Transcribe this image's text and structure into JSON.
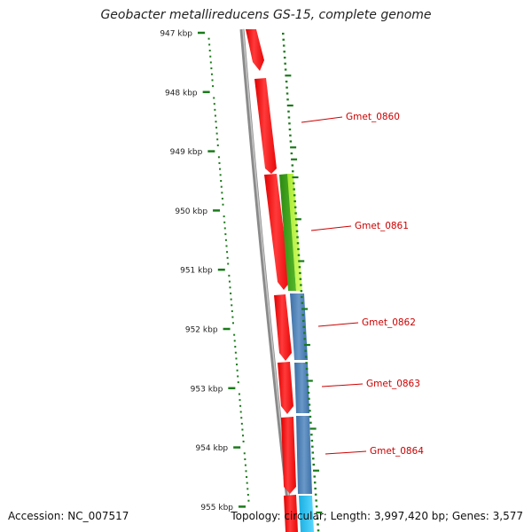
{
  "map": {
    "title": "Geobacter metallireducens GS-15, complete genome",
    "accession": "Accession: NC_007517",
    "summary": "Topology: circular; Length: 3,997,420 bp; Genes: 3,577"
  },
  "ruler": {
    "unit": "kbp",
    "ticks": [
      {
        "kbp": 947,
        "label": "947 kbp"
      },
      {
        "kbp": 948,
        "label": "948 kbp"
      },
      {
        "kbp": 949,
        "label": "949 kbp"
      },
      {
        "kbp": 950,
        "label": "950 kbp"
      },
      {
        "kbp": 951,
        "label": "951 kbp"
      },
      {
        "kbp": 952,
        "label": "952 kbp"
      },
      {
        "kbp": 953,
        "label": "953 kbp"
      },
      {
        "kbp": 954,
        "label": "954 kbp"
      },
      {
        "kbp": 955,
        "label": "955 kbp"
      }
    ]
  },
  "gene_labels": [
    {
      "name": "Gmet_0860",
      "color": "#cc0000"
    },
    {
      "name": "Gmet_0861",
      "color": "#cc0000"
    },
    {
      "name": "Gmet_0862",
      "color": "#cc0000"
    },
    {
      "name": "Gmet_0863",
      "color": "#cc0000"
    },
    {
      "name": "Gmet_0864",
      "color": "#cc0000"
    }
  ],
  "colors": {
    "backbone": "#8a8a8a",
    "cds": "#ff1a1a",
    "feature_green": "#3a9a1a",
    "feature_lime": "#b8f040",
    "feature_blue": "#4a7fb5",
    "feature_cyan": "#2ec4f0",
    "gc_skew": "#1a7a1a",
    "label_line": "#cc0000"
  }
}
